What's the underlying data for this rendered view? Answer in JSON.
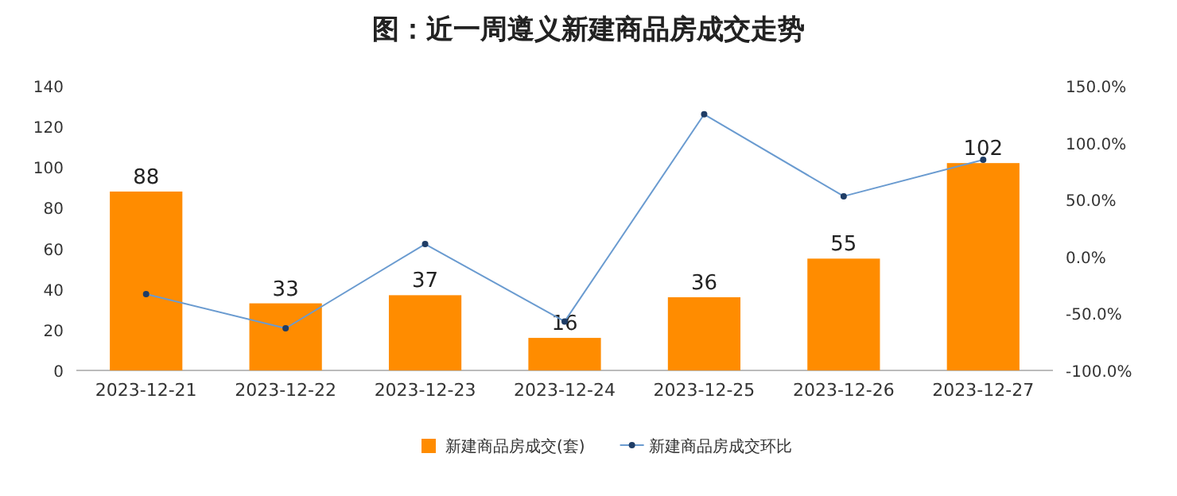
{
  "chart_data": {
    "type": "bar",
    "title": "图：近一周遵义新建商品房成交走势",
    "categories": [
      "2023-12-21",
      "2023-12-22",
      "2023-12-23",
      "2023-12-24",
      "2023-12-25",
      "2023-12-26",
      "2023-12-27"
    ],
    "series": [
      {
        "name": "新建商品房成交(套)",
        "color": "#ff8c00",
        "values": [
          88,
          33,
          37,
          16,
          36,
          55,
          102
        ],
        "data_labels": true
      },
      {
        "name": "新建商品房成交环比",
        "type": "line",
        "axis": "y2",
        "color": "#6a9bd0",
        "values": [
          -33,
          -63,
          11,
          -57,
          125,
          53,
          85
        ],
        "marker": "circle"
      }
    ],
    "ylim": [
      0,
      140
    ],
    "yticks": [
      0,
      20,
      40,
      60,
      80,
      100,
      120,
      140
    ],
    "y2lim": [
      -100,
      150
    ],
    "y2ticks": [
      {
        "value": -100,
        "label": "-100.0%"
      },
      {
        "value": -50,
        "label": "-50.0%"
      },
      {
        "value": 0,
        "label": "0.0%"
      },
      {
        "value": 50,
        "label": "50.0%"
      },
      {
        "value": 100,
        "label": "100.0%"
      },
      {
        "value": 150,
        "label": "150.0%"
      }
    ],
    "grid": false,
    "legend": "bottom"
  }
}
